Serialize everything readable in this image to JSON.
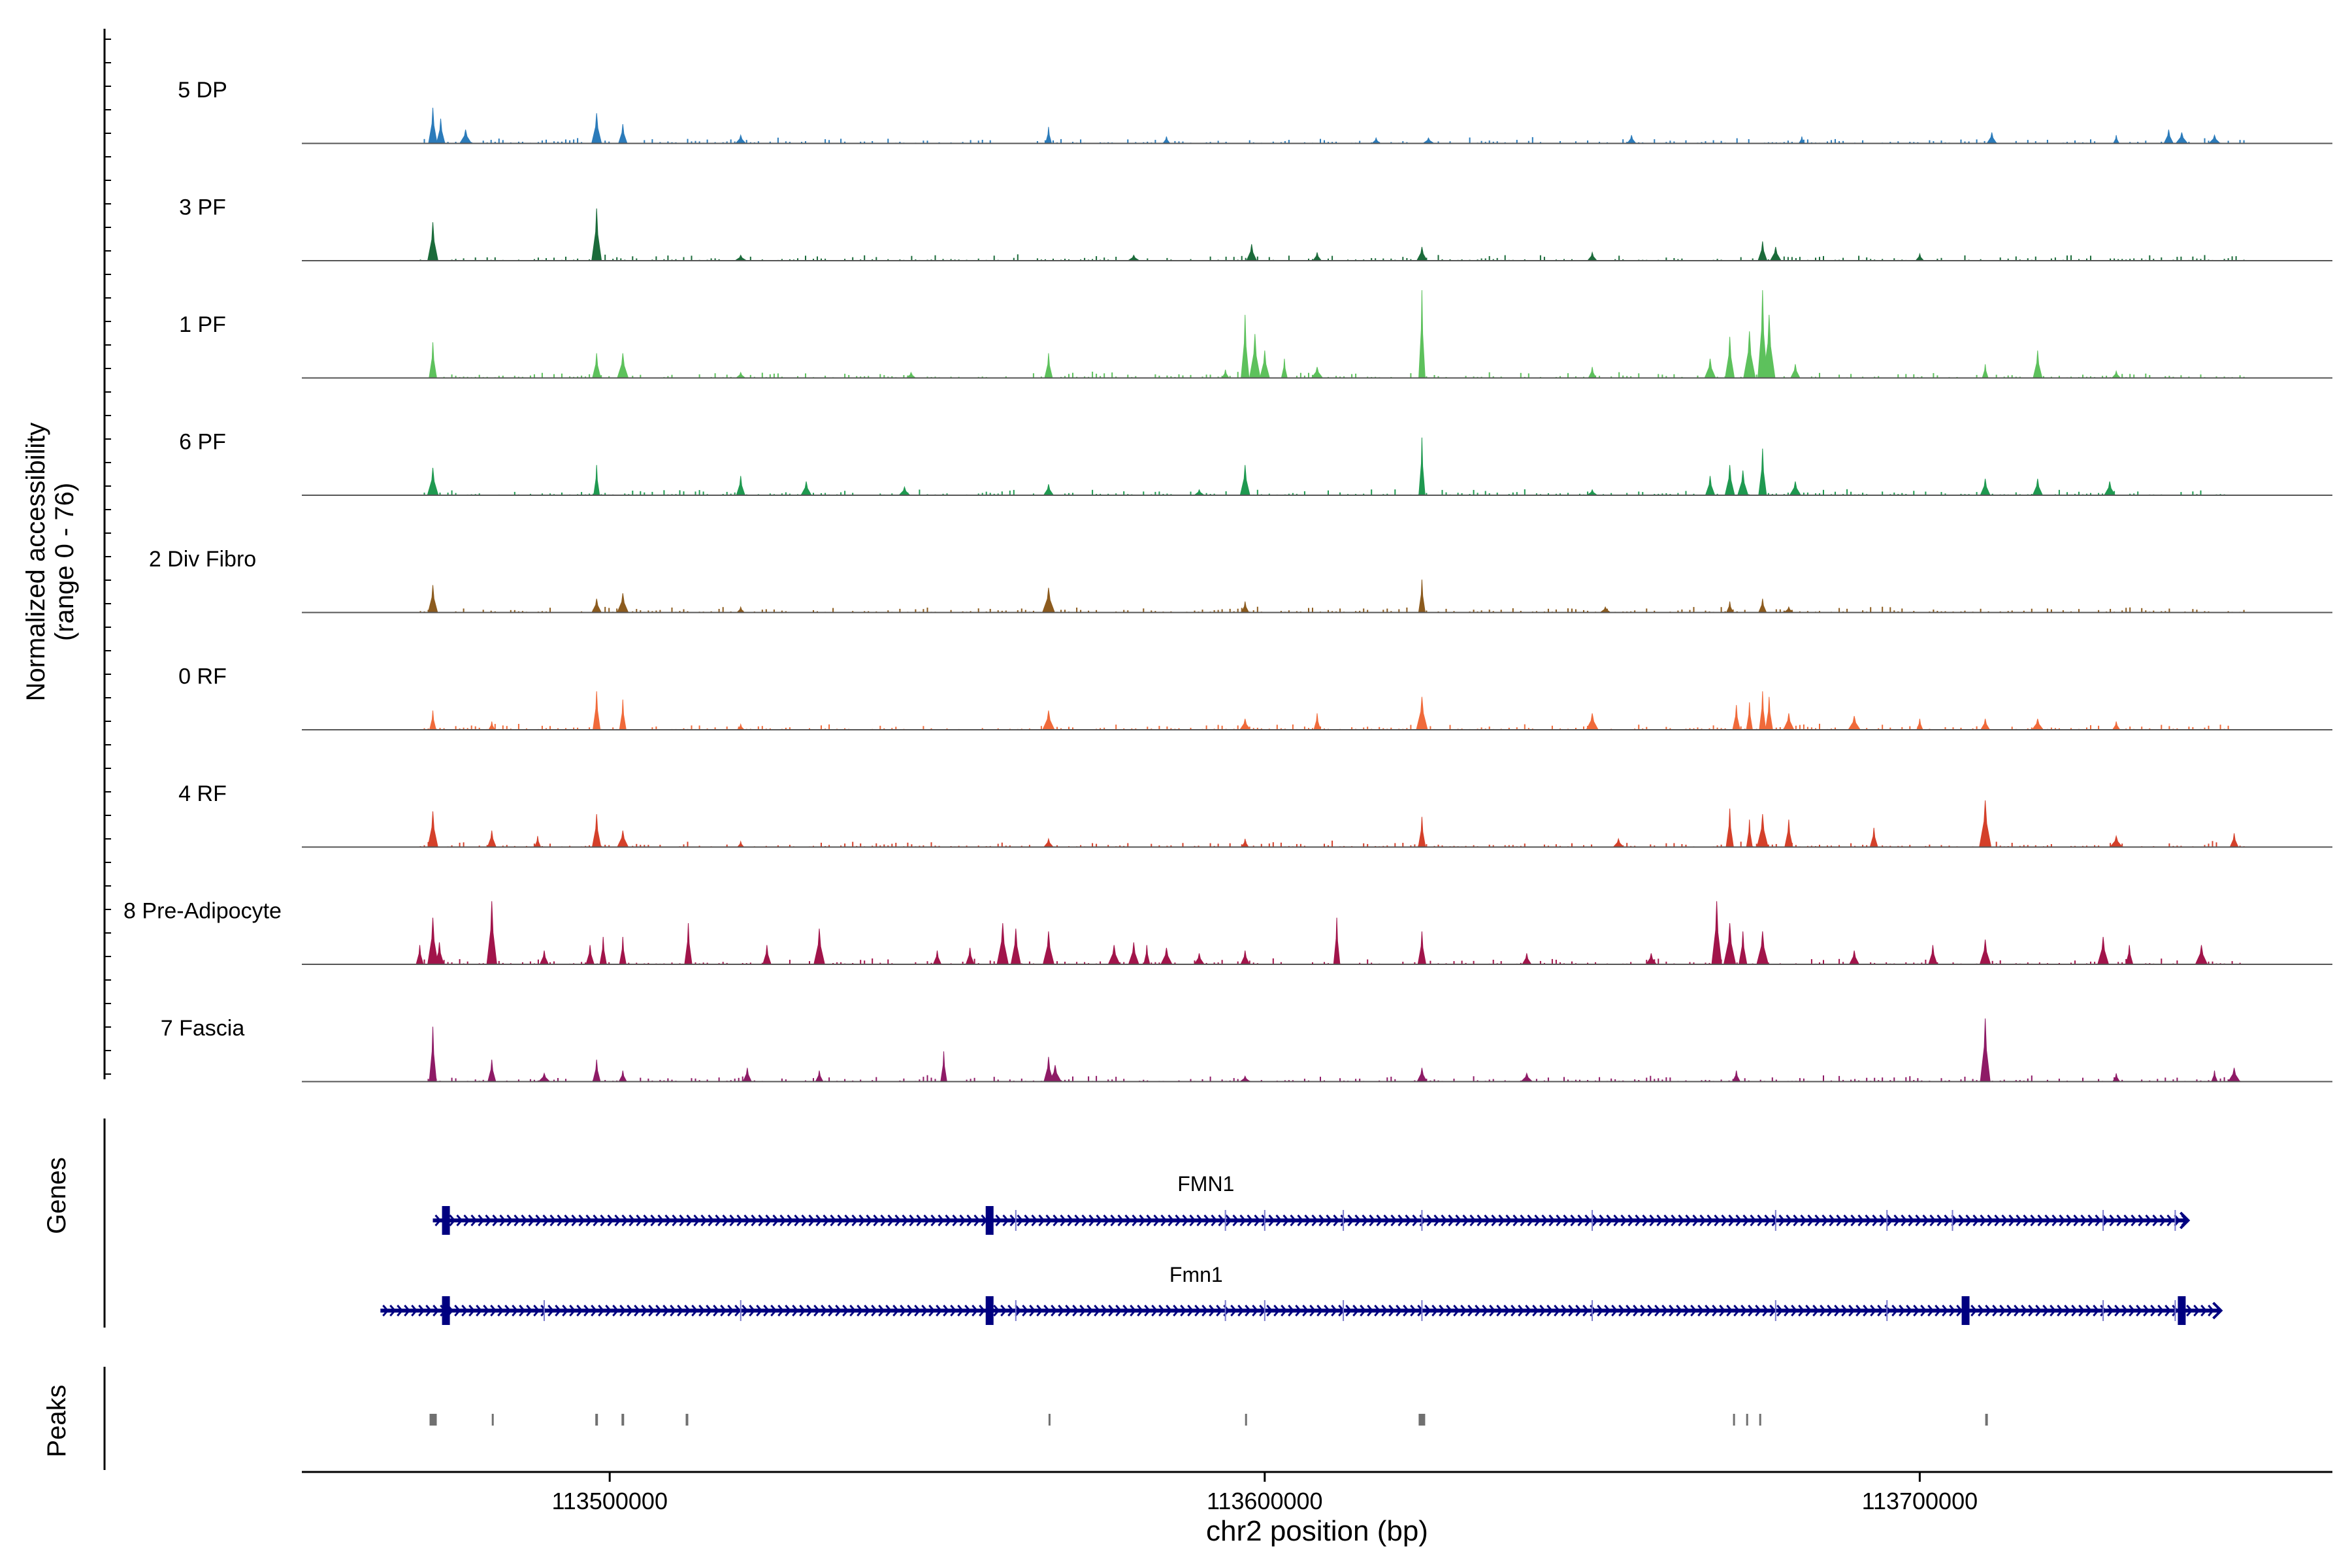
{
  "chart_data": {
    "type": "area",
    "title": "",
    "ylabel_line1": "Normalized accessibility",
    "ylabel_line2": "(range 0 - 76)",
    "y_range": [
      0,
      76
    ],
    "xlabel": "chr2 position (bp)",
    "xlim": [
      113453000,
      113763000
    ],
    "x_ticks": [
      113500000,
      113600000,
      113700000
    ],
    "x_tick_labels": [
      "113500000",
      "113600000",
      "113700000"
    ],
    "genes_label": "Genes",
    "peaks_label": "Peaks",
    "tracks": [
      {
        "name": "5 DP",
        "color": "#2b7bba",
        "peaks": [
          [
            113473000,
            26
          ],
          [
            113474200,
            18
          ],
          [
            113478000,
            10
          ],
          [
            113498000,
            22
          ],
          [
            113502000,
            14
          ],
          [
            113520000,
            6
          ],
          [
            113567000,
            12
          ],
          [
            113585000,
            5
          ],
          [
            113617000,
            4
          ],
          [
            113625000,
            4
          ],
          [
            113656000,
            6
          ],
          [
            113682000,
            5
          ],
          [
            113711000,
            8
          ],
          [
            113730000,
            6
          ],
          [
            113738000,
            10
          ],
          [
            113740000,
            8
          ],
          [
            113745000,
            6
          ]
        ]
      },
      {
        "name": "3 PF",
        "color": "#1b6b3a",
        "peaks": [
          [
            113473000,
            28
          ],
          [
            113498000,
            38
          ],
          [
            113520000,
            4
          ],
          [
            113580000,
            4
          ],
          [
            113598000,
            12
          ],
          [
            113608000,
            6
          ],
          [
            113624000,
            10
          ],
          [
            113650000,
            6
          ],
          [
            113676000,
            14
          ],
          [
            113678000,
            10
          ],
          [
            113700000,
            5
          ]
        ]
      },
      {
        "name": "1 PF",
        "color": "#5dc15c",
        "peaks": [
          [
            113473000,
            26
          ],
          [
            113498000,
            18
          ],
          [
            113502000,
            18
          ],
          [
            113520000,
            4
          ],
          [
            113546000,
            4
          ],
          [
            113567000,
            18
          ],
          [
            113594000,
            6
          ],
          [
            113597000,
            46
          ],
          [
            113598500,
            32
          ],
          [
            113600000,
            20
          ],
          [
            113603000,
            14
          ],
          [
            113608000,
            8
          ],
          [
            113624000,
            64
          ],
          [
            113650000,
            8
          ],
          [
            113668000,
            14
          ],
          [
            113671000,
            30
          ],
          [
            113674000,
            34
          ],
          [
            113676000,
            64
          ],
          [
            113677000,
            46
          ],
          [
            113681000,
            10
          ],
          [
            113710000,
            10
          ],
          [
            113718000,
            20
          ],
          [
            113730000,
            5
          ]
        ]
      },
      {
        "name": "6 PF",
        "color": "#1f9950",
        "peaks": [
          [
            113473000,
            20
          ],
          [
            113498000,
            22
          ],
          [
            113520000,
            14
          ],
          [
            113530000,
            10
          ],
          [
            113545000,
            6
          ],
          [
            113567000,
            8
          ],
          [
            113590000,
            4
          ],
          [
            113597000,
            22
          ],
          [
            113624000,
            42
          ],
          [
            113650000,
            4
          ],
          [
            113668000,
            14
          ],
          [
            113671000,
            22
          ],
          [
            113673000,
            18
          ],
          [
            113676000,
            34
          ],
          [
            113681000,
            10
          ],
          [
            113710000,
            12
          ],
          [
            113718000,
            12
          ],
          [
            113729000,
            10
          ]
        ]
      },
      {
        "name": "2 Div Fibro",
        "color": "#8c5b1e",
        "peaks": [
          [
            113473000,
            20
          ],
          [
            113498000,
            10
          ],
          [
            113502000,
            14
          ],
          [
            113520000,
            4
          ],
          [
            113567000,
            18
          ],
          [
            113597000,
            8
          ],
          [
            113624000,
            24
          ],
          [
            113652000,
            4
          ],
          [
            113671000,
            8
          ],
          [
            113676000,
            10
          ],
          [
            113680000,
            4
          ]
        ]
      },
      {
        "name": "0 RF",
        "color": "#f06a3a",
        "peaks": [
          [
            113473000,
            14
          ],
          [
            113482000,
            6
          ],
          [
            113498000,
            28
          ],
          [
            113502000,
            22
          ],
          [
            113520000,
            4
          ],
          [
            113567000,
            14
          ],
          [
            113597000,
            8
          ],
          [
            113608000,
            12
          ],
          [
            113624000,
            24
          ],
          [
            113650000,
            12
          ],
          [
            113672000,
            18
          ],
          [
            113674000,
            20
          ],
          [
            113676000,
            28
          ],
          [
            113677000,
            24
          ],
          [
            113680000,
            12
          ],
          [
            113690000,
            10
          ],
          [
            113700000,
            8
          ],
          [
            113710000,
            8
          ],
          [
            113718000,
            8
          ],
          [
            113730000,
            6
          ]
        ]
      },
      {
        "name": "4 RF",
        "color": "#d4402a",
        "peaks": [
          [
            113473000,
            26
          ],
          [
            113482000,
            12
          ],
          [
            113489000,
            8
          ],
          [
            113498000,
            24
          ],
          [
            113502000,
            12
          ],
          [
            113520000,
            4
          ],
          [
            113567000,
            6
          ],
          [
            113597000,
            6
          ],
          [
            113624000,
            22
          ],
          [
            113654000,
            6
          ],
          [
            113671000,
            28
          ],
          [
            113674000,
            20
          ],
          [
            113676000,
            24
          ],
          [
            113680000,
            20
          ],
          [
            113693000,
            14
          ],
          [
            113710000,
            34
          ],
          [
            113730000,
            8
          ],
          [
            113748000,
            10
          ]
        ]
      },
      {
        "name": "8 Pre-Adipocyte",
        "color": "#a1144a",
        "peaks": [
          [
            113471000,
            14
          ],
          [
            113473000,
            34
          ],
          [
            113474000,
            16
          ],
          [
            113482000,
            46
          ],
          [
            113490000,
            10
          ],
          [
            113497000,
            14
          ],
          [
            113499000,
            20
          ],
          [
            113502000,
            20
          ],
          [
            113512000,
            30
          ],
          [
            113524000,
            14
          ],
          [
            113532000,
            26
          ],
          [
            113550000,
            10
          ],
          [
            113555000,
            12
          ],
          [
            113560000,
            30
          ],
          [
            113562000,
            26
          ],
          [
            113567000,
            24
          ],
          [
            113577000,
            14
          ],
          [
            113580000,
            16
          ],
          [
            113582000,
            14
          ],
          [
            113585000,
            12
          ],
          [
            113590000,
            8
          ],
          [
            113597000,
            10
          ],
          [
            113611000,
            34
          ],
          [
            113624000,
            24
          ],
          [
            113640000,
            8
          ],
          [
            113659000,
            8
          ],
          [
            113669000,
            46
          ],
          [
            113671000,
            30
          ],
          [
            113673000,
            24
          ],
          [
            113676000,
            24
          ],
          [
            113690000,
            10
          ],
          [
            113702000,
            14
          ],
          [
            113710000,
            18
          ],
          [
            113728000,
            20
          ],
          [
            113732000,
            14
          ],
          [
            113743000,
            14
          ]
        ]
      },
      {
        "name": "7 Fascia",
        "color": "#8e1a66",
        "peaks": [
          [
            113473000,
            40
          ],
          [
            113482000,
            16
          ],
          [
            113490000,
            6
          ],
          [
            113498000,
            16
          ],
          [
            113502000,
            8
          ],
          [
            113521000,
            10
          ],
          [
            113532000,
            8
          ],
          [
            113551000,
            22
          ],
          [
            113567000,
            18
          ],
          [
            113568000,
            12
          ],
          [
            113597000,
            4
          ],
          [
            113624000,
            10
          ],
          [
            113640000,
            6
          ],
          [
            113672000,
            8
          ],
          [
            113710000,
            46
          ],
          [
            113730000,
            6
          ],
          [
            113745000,
            8
          ],
          [
            113748000,
            10
          ]
        ]
      }
    ],
    "genes": [
      {
        "name": "FMN1",
        "start": 113473000,
        "end": 113741000,
        "exons": [
          113475000,
          113558000
        ],
        "introns": [
          113562000,
          113594000,
          113600000,
          113612000,
          113624000,
          113650000,
          113678000,
          113695000,
          113705000,
          113728000,
          113739000
        ]
      },
      {
        "name": "Fmn1",
        "start": 113465000,
        "end": 113746000,
        "exons": [
          113475000,
          113558000,
          113707000,
          113740000
        ],
        "introns": [
          113490000,
          113520000,
          113562000,
          113594000,
          113600000,
          113612000,
          113624000,
          113650000,
          113678000,
          113695000,
          113728000,
          113739000
        ]
      }
    ],
    "peak_regions": [
      [
        113472500,
        113473600
      ],
      [
        113482000,
        113482300
      ],
      [
        113497800,
        113498200
      ],
      [
        113501800,
        113502200
      ],
      [
        113511600,
        113512000
      ],
      [
        113567000,
        113567300
      ],
      [
        113597000,
        113597300
      ],
      [
        113623500,
        113624500
      ],
      [
        113671500,
        113671800
      ],
      [
        113673500,
        113673800
      ],
      [
        113675500,
        113675800
      ],
      [
        113710000,
        113710400
      ]
    ]
  }
}
